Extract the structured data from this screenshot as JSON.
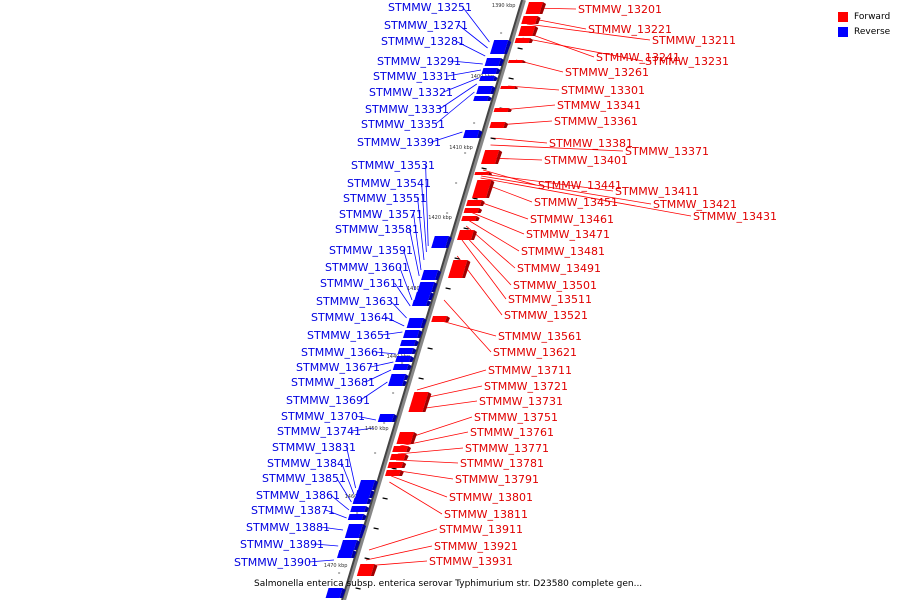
{
  "legend": {
    "forward": {
      "label": "Forward",
      "color": "#ff0000"
    },
    "reverse": {
      "label": "Reverse",
      "color": "#0000ff"
    }
  },
  "caption": "Salmonella enterica subsp. enterica serovar Typhimurium str. D23580 complete gen...",
  "axis": {
    "ticks": [
      "1390 kbp",
      "1400 kbp",
      "1410 kbp",
      "1420 kbp",
      "1430 kbp",
      "1440 kbp",
      "1450 kbp",
      "1460 kbp",
      "1470 kbp"
    ]
  },
  "forward_genes": [
    "STMMW_13201",
    "STMMW_13221",
    "STMMW_13211",
    "STMMW_13241",
    "STMMW_13231",
    "STMMW_13261",
    "STMMW_13301",
    "STMMW_13341",
    "STMMW_13361",
    "STMMW_13381",
    "STMMW_13371",
    "STMMW_13401",
    "STMMW_13441",
    "STMMW_13411",
    "STMMW_13451",
    "STMMW_13421",
    "STMMW_13431",
    "STMMW_13461",
    "STMMW_13471",
    "STMMW_13481",
    "STMMW_13491",
    "STMMW_13501",
    "STMMW_13511",
    "STMMW_13521",
    "STMMW_13561",
    "STMMW_13621",
    "STMMW_13711",
    "STMMW_13721",
    "STMMW_13731",
    "STMMW_13751",
    "STMMW_13761",
    "STMMW_13771",
    "STMMW_13781",
    "STMMW_13791",
    "STMMW_13801",
    "STMMW_13811",
    "STMMW_13911",
    "STMMW_13921",
    "STMMW_13931"
  ],
  "reverse_genes": [
    "STMMW_13251",
    "STMMW_13271",
    "STMMW_13281",
    "STMMW_13291",
    "STMMW_13311",
    "STMMW_13321",
    "STMMW_13331",
    "STMMW_13351",
    "STMMW_13391",
    "STMMW_13531",
    "STMMW_13541",
    "STMMW_13551",
    "STMMW_13571",
    "STMMW_13581",
    "STMMW_13591",
    "STMMW_13601",
    "STMMW_13611",
    "STMMW_13631",
    "STMMW_13641",
    "STMMW_13651",
    "STMMW_13661",
    "STMMW_13671",
    "STMMW_13681",
    "STMMW_13691",
    "STMMW_13701",
    "STMMW_13741",
    "STMMW_13831",
    "STMMW_13841",
    "STMMW_13851",
    "STMMW_13861",
    "STMMW_13871",
    "STMMW_13881",
    "STMMW_13891",
    "STMMW_13901"
  ]
}
